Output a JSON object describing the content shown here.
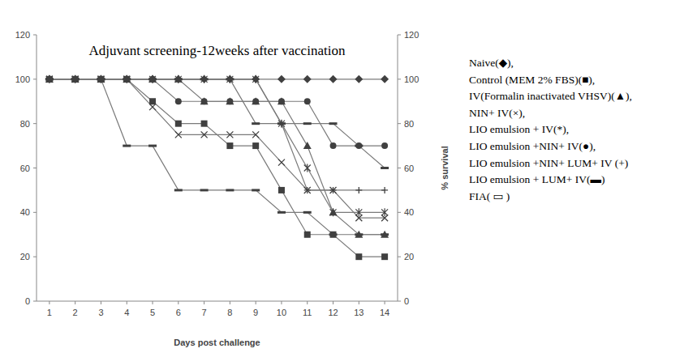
{
  "chart_data": {
    "type": "line",
    "title": "Adjuvant screening-12weeks after vaccination",
    "x_label": "Days post challenge",
    "y2_label": "% survival",
    "categories": [
      "1",
      "2",
      "3",
      "4",
      "5",
      "6",
      "7",
      "8",
      "9",
      "10",
      "11",
      "12",
      "13",
      "14"
    ],
    "ylim": [
      0,
      120
    ],
    "yticks": [
      0,
      20,
      40,
      60,
      80,
      100,
      120
    ],
    "y2lim": [
      0,
      120
    ],
    "y2ticks": [
      0,
      20,
      40,
      60,
      80,
      100,
      120
    ],
    "grid": false,
    "legend": "right",
    "series": [
      {
        "name": "Naive(◆),",
        "color": "#404040",
        "marker": "diamond",
        "values": [
          100,
          100,
          100,
          100,
          100,
          100,
          100,
          100,
          100,
          100,
          100,
          100,
          100,
          100
        ]
      },
      {
        "name": "Control (MEM 2% FBS)(■),",
        "color": "#404040",
        "marker": "square",
        "values": [
          100,
          100,
          100,
          100,
          90,
          80,
          80,
          70,
          70,
          50,
          30,
          30,
          20,
          20
        ]
      },
      {
        "name": "IV(Formalin inactivated VHSV)(▲),",
        "color": "#404040",
        "marker": "triangle",
        "values": [
          100,
          100,
          100,
          100,
          100,
          100,
          90,
          90,
          90,
          90,
          70,
          40,
          30,
          30
        ]
      },
      {
        "name": "NIN+ IV(×),",
        "color": "#404040",
        "marker": "x",
        "values": [
          100,
          100,
          100,
          100,
          87.5,
          75,
          75,
          75,
          75,
          62.5,
          50,
          50,
          37.5,
          37.5
        ]
      },
      {
        "name": "LIO emulsion + IV(*),",
        "color": "#404040",
        "marker": "star",
        "values": [
          100,
          100,
          100,
          100,
          100,
          100,
          100,
          100,
          100,
          80,
          60,
          40,
          40,
          40
        ]
      },
      {
        "name": "LIO emulsion +NIN+ IV(●),",
        "color": "#404040",
        "marker": "circle",
        "values": [
          100,
          100,
          100,
          100,
          100,
          90,
          90,
          90,
          90,
          90,
          90,
          70,
          70,
          70
        ]
      },
      {
        "name": "LIO emulsion +NIN+ LUM+ IV (+)",
        "color": "#404040",
        "marker": "plus",
        "values": [
          100,
          100,
          100,
          100,
          100,
          100,
          100,
          100,
          100,
          80,
          50,
          50,
          50,
          50
        ]
      },
      {
        "name": "LIO emulsion + LUM+ IV(▬)",
        "color": "#404040",
        "marker": "dash",
        "values": [
          100,
          100,
          100,
          100,
          100,
          100,
          100,
          100,
          80,
          80,
          80,
          80,
          70,
          60
        ]
      },
      {
        "name": "FIA( ▭ )",
        "color": "#404040",
        "marker": "dash",
        "values": [
          100,
          100,
          100,
          70,
          70,
          50,
          50,
          50,
          50,
          40,
          40,
          30,
          30,
          30
        ]
      }
    ]
  }
}
